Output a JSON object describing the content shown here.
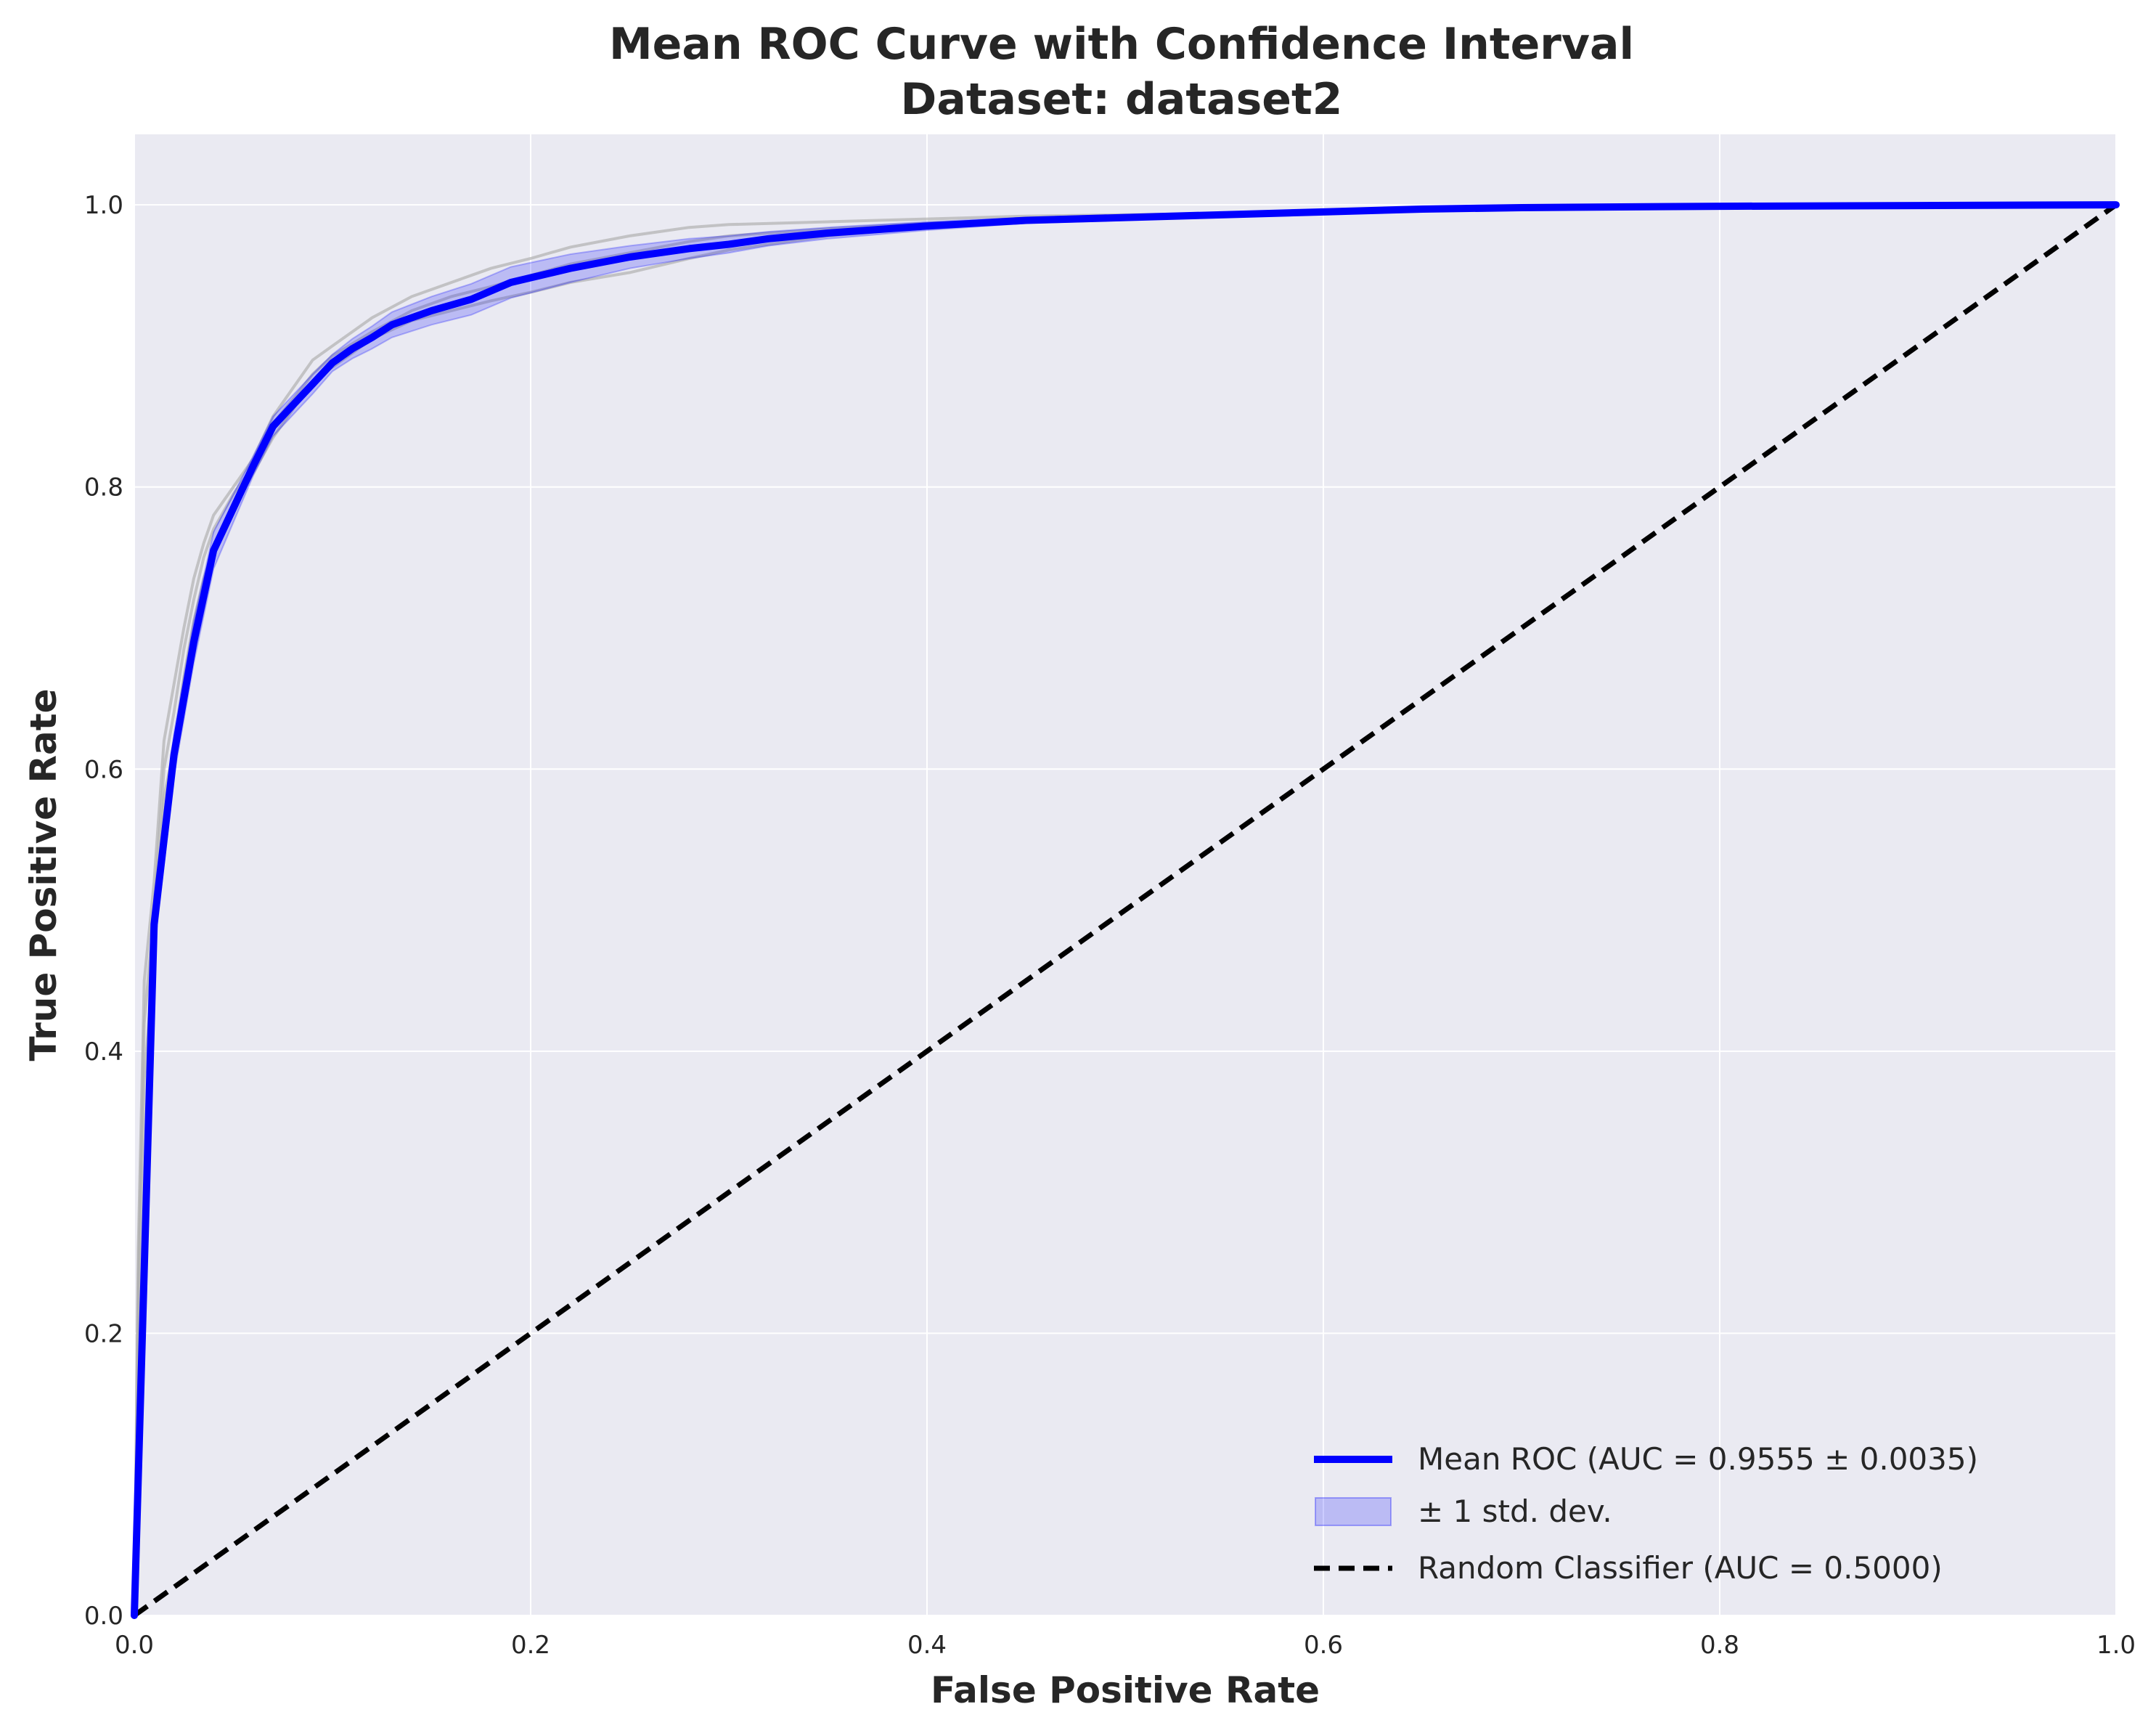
{
  "chart_data": {
    "type": "line",
    "title": "Mean ROC Curve with Confidence Interval",
    "subtitle": "Dataset: dataset2",
    "xlabel": "False Positive Rate",
    "ylabel": "True Positive Rate",
    "xlim": [
      0.0,
      1.0
    ],
    "ylim": [
      0.0,
      1.05
    ],
    "xticks": [
      "0.0",
      "0.2",
      "0.4",
      "0.6",
      "0.8",
      "1.0"
    ],
    "yticks": [
      "0.0",
      "0.2",
      "0.4",
      "0.6",
      "0.8",
      "1.0"
    ],
    "grid": true,
    "legend_position": "lower-right",
    "colors": {
      "plot_background": "#EAEAF2",
      "grid": "#FFFFFF",
      "mean": "#0000FF",
      "band": "#0000FF",
      "fold": "#B0B0B0",
      "random": "#000000"
    },
    "series": [
      {
        "name": "Mean ROC (AUC = 0.9555 ± 0.0035)",
        "style": "solid",
        "x": [
          0.0,
          0.01,
          0.02,
          0.03,
          0.04,
          0.05,
          0.06,
          0.07,
          0.08,
          0.09,
          0.1,
          0.11,
          0.12,
          0.13,
          0.15,
          0.17,
          0.19,
          0.22,
          0.25,
          0.28,
          0.3,
          0.32,
          0.35,
          0.4,
          0.45,
          0.5,
          0.55,
          0.6,
          0.65,
          0.7,
          0.8,
          0.9,
          1.0
        ],
        "y": [
          0.0,
          0.49,
          0.61,
          0.69,
          0.755,
          0.785,
          0.815,
          0.843,
          0.858,
          0.873,
          0.888,
          0.898,
          0.906,
          0.915,
          0.925,
          0.933,
          0.945,
          0.955,
          0.963,
          0.969,
          0.972,
          0.976,
          0.98,
          0.985,
          0.989,
          0.991,
          0.993,
          0.995,
          0.997,
          0.998,
          0.999,
          0.9995,
          1.0
        ]
      },
      {
        "name": "± 1 std. dev.",
        "style": "band",
        "x": [
          0.0,
          0.01,
          0.02,
          0.03,
          0.04,
          0.05,
          0.06,
          0.07,
          0.08,
          0.09,
          0.1,
          0.11,
          0.12,
          0.13,
          0.15,
          0.17,
          0.19,
          0.22,
          0.25,
          0.28,
          0.3,
          0.32,
          0.35,
          0.4,
          0.45,
          0.5,
          0.55,
          0.6,
          0.65,
          0.7,
          0.8,
          0.9,
          1.0
        ],
        "y_lower": [
          0.0,
          0.47,
          0.595,
          0.675,
          0.742,
          0.775,
          0.808,
          0.836,
          0.851,
          0.866,
          0.882,
          0.891,
          0.898,
          0.906,
          0.915,
          0.922,
          0.934,
          0.945,
          0.955,
          0.962,
          0.966,
          0.971,
          0.976,
          0.982,
          0.987,
          0.989,
          0.992,
          0.994,
          0.996,
          0.997,
          0.998,
          0.999,
          1.0
        ],
        "y_upper": [
          0.0,
          0.51,
          0.625,
          0.705,
          0.768,
          0.795,
          0.822,
          0.85,
          0.865,
          0.88,
          0.894,
          0.905,
          0.914,
          0.924,
          0.935,
          0.944,
          0.956,
          0.965,
          0.971,
          0.976,
          0.978,
          0.981,
          0.984,
          0.988,
          0.991,
          0.993,
          0.994,
          0.996,
          0.998,
          0.999,
          1.0,
          1.0,
          1.0
        ]
      },
      {
        "name": "Random Classifier (AUC = 0.5000)",
        "style": "dashed",
        "x": [
          0.0,
          1.0
        ],
        "y": [
          0.0,
          1.0
        ]
      }
    ],
    "folds": [
      {
        "x": [
          0.0,
          0.002,
          0.005,
          0.01,
          0.015,
          0.02,
          0.025,
          0.03,
          0.035,
          0.04,
          0.05,
          0.06,
          0.07,
          0.08,
          0.09,
          0.1,
          0.12,
          0.14,
          0.16,
          0.18,
          0.2,
          0.22,
          0.25,
          0.28,
          0.3,
          0.35,
          0.4,
          0.45,
          0.5,
          0.55
        ],
        "y": [
          0.0,
          0.26,
          0.45,
          0.52,
          0.62,
          0.66,
          0.7,
          0.735,
          0.76,
          0.78,
          0.8,
          0.82,
          0.85,
          0.87,
          0.89,
          0.9,
          0.92,
          0.935,
          0.945,
          0.955,
          0.962,
          0.97,
          0.978,
          0.984,
          0.986,
          0.988,
          0.99,
          0.992,
          0.993,
          0.994
        ]
      },
      {
        "x": [
          0.0,
          0.002,
          0.005,
          0.01,
          0.015,
          0.02,
          0.025,
          0.03,
          0.035,
          0.04,
          0.05,
          0.06,
          0.07,
          0.08,
          0.09,
          0.1,
          0.12,
          0.14,
          0.16,
          0.18,
          0.2,
          0.22,
          0.25,
          0.28,
          0.3,
          0.35,
          0.4,
          0.45,
          0.5,
          0.55
        ],
        "y": [
          0.0,
          0.22,
          0.38,
          0.47,
          0.58,
          0.615,
          0.665,
          0.705,
          0.735,
          0.755,
          0.785,
          0.81,
          0.835,
          0.855,
          0.875,
          0.885,
          0.905,
          0.918,
          0.925,
          0.932,
          0.938,
          0.945,
          0.952,
          0.962,
          0.968,
          0.978,
          0.984,
          0.988,
          0.991,
          0.993
        ]
      },
      {
        "x": [
          0.0,
          0.002,
          0.005,
          0.01,
          0.015,
          0.02,
          0.025,
          0.03,
          0.035,
          0.04,
          0.05,
          0.06,
          0.07,
          0.08,
          0.09,
          0.1,
          0.12,
          0.14,
          0.16,
          0.18,
          0.2,
          0.22,
          0.25,
          0.28,
          0.3,
          0.35,
          0.4,
          0.45,
          0.5,
          0.55
        ],
        "y": [
          0.0,
          0.24,
          0.42,
          0.5,
          0.6,
          0.64,
          0.685,
          0.72,
          0.75,
          0.77,
          0.795,
          0.815,
          0.845,
          0.862,
          0.88,
          0.893,
          0.91,
          0.925,
          0.935,
          0.942,
          0.95,
          0.958,
          0.966,
          0.974,
          0.978,
          0.983,
          0.987,
          0.99,
          0.992,
          0.994
        ]
      }
    ]
  }
}
